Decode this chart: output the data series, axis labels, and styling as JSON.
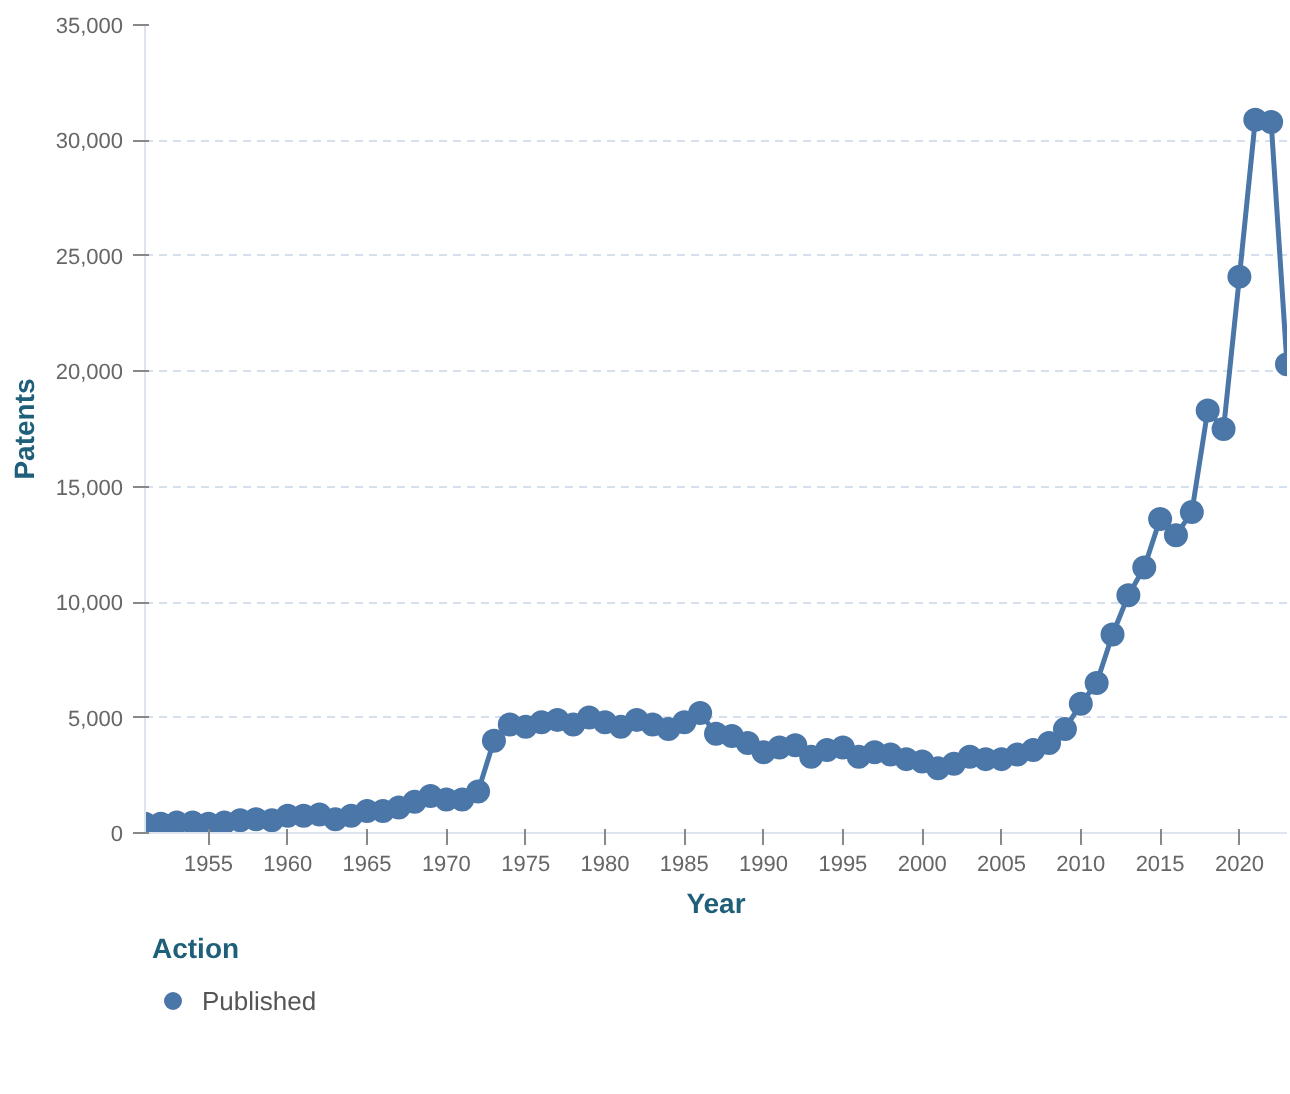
{
  "chart_data": {
    "type": "line",
    "xlabel": "Year",
    "ylabel": "Patents",
    "legend_title": "Action",
    "legend": "bottom",
    "grid": "y",
    "marker": "circle",
    "line_style": "solid",
    "xlim": [
      1951,
      2023
    ],
    "ylim": [
      0,
      35000
    ],
    "xticks": [
      1955,
      1960,
      1965,
      1970,
      1975,
      1980,
      1985,
      1990,
      1995,
      2000,
      2005,
      2010,
      2015,
      2020
    ],
    "yticks": [
      {
        "value": 0,
        "label": "0"
      },
      {
        "value": 5000,
        "label": "5,000"
      },
      {
        "value": 10000,
        "label": "10,000"
      },
      {
        "value": 15000,
        "label": "15,000"
      },
      {
        "value": 20000,
        "label": "20,000"
      },
      {
        "value": 25000,
        "label": "25,000"
      },
      {
        "value": 30000,
        "label": "30,000"
      },
      {
        "value": 35000,
        "label": "35,000"
      }
    ],
    "x": [
      1951,
      1952,
      1953,
      1954,
      1955,
      1956,
      1957,
      1958,
      1959,
      1960,
      1961,
      1962,
      1963,
      1964,
      1965,
      1966,
      1967,
      1968,
      1969,
      1970,
      1971,
      1972,
      1973,
      1974,
      1975,
      1976,
      1977,
      1978,
      1979,
      1980,
      1981,
      1982,
      1983,
      1984,
      1985,
      1986,
      1987,
      1988,
      1989,
      1990,
      1991,
      1992,
      1993,
      1994,
      1995,
      1996,
      1997,
      1998,
      1999,
      2000,
      2001,
      2002,
      2003,
      2004,
      2005,
      2006,
      2007,
      2008,
      2009,
      2010,
      2011,
      2012,
      2013,
      2014,
      2015,
      2016,
      2017,
      2018,
      2019,
      2020,
      2021,
      2022,
      2023
    ],
    "series": [
      {
        "name": "Published",
        "color": "#4a76a8",
        "values": [
          400,
          400,
          450,
          450,
          400,
          450,
          550,
          600,
          550,
          750,
          750,
          800,
          600,
          750,
          950,
          950,
          1100,
          1350,
          1600,
          1450,
          1450,
          1800,
          4000,
          4700,
          4600,
          4800,
          4900,
          4700,
          5000,
          4800,
          4600,
          4900,
          4700,
          4500,
          4800,
          5200,
          4300,
          4200,
          3900,
          3500,
          3700,
          3800,
          3300,
          3600,
          3700,
          3300,
          3500,
          3400,
          3200,
          3100,
          2800,
          3000,
          3300,
          3200,
          3200,
          3400,
          3600,
          3900,
          4500,
          5600,
          6500,
          8600,
          10300,
          11500,
          13600,
          12900,
          13900,
          18300,
          17500,
          24100,
          30900,
          30800,
          20300
        ]
      }
    ]
  }
}
